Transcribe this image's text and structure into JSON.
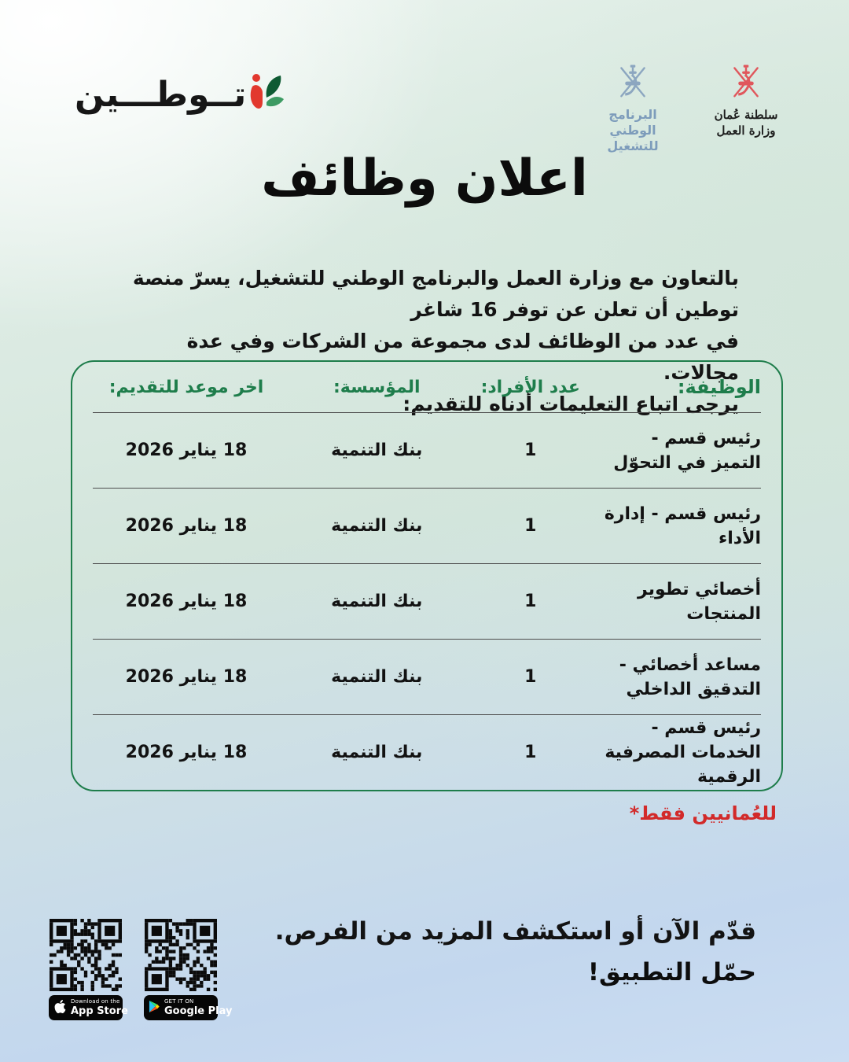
{
  "brand": {
    "wordmark": "تــوطـــين"
  },
  "partners": {
    "nep": {
      "name_line1": "البرنامج الوطني",
      "name_line2": "للتشغيل"
    },
    "mol": {
      "name_line1": "سلطنة عُمان",
      "name_line2": "وزارة العمل"
    }
  },
  "title": "اعلان وظائف",
  "intro": {
    "line1": "بالتعاون مع وزارة العمل والبرنامج الوطني للتشغيل، يسرّ منصة توطين أن تعلن عن توفر 16 شاغر",
    "line2": "في عدد من الوظائف لدى مجموعة من الشركات وفي عدة مجالات.",
    "line3": "يرجى اتباع التعليمات أدناه للتقديم:"
  },
  "table": {
    "headers": {
      "job": "الوظيفة:",
      "count": "عدد الأفراد:",
      "org": "المؤسسة:",
      "deadline": "اخر موعد للتقديم:"
    },
    "rows": [
      {
        "job": "رئيس قسم -\nالتميز في التحوّل",
        "count": "1",
        "org": "بنك التنمية",
        "deadline": "18 يناير 2026"
      },
      {
        "job": "رئيس قسم - إدارة الأداء",
        "count": "1",
        "org": "بنك التنمية",
        "deadline": "18 يناير 2026"
      },
      {
        "job": "أخصائي تطوير المنتجات",
        "count": "1",
        "org": "بنك التنمية",
        "deadline": "18 يناير 2026"
      },
      {
        "job": "مساعد أخصائي -\nالتدقيق الداخلي",
        "count": "1",
        "org": "بنك التنمية",
        "deadline": "18 يناير 2026"
      },
      {
        "job": "رئيس قسم -\nالخدمات المصرفية الرقمية",
        "count": "1",
        "org": "بنك التنمية",
        "deadline": "18 يناير 2026"
      }
    ]
  },
  "note": "للعُمانيين فقط*",
  "cta": {
    "line1": "قدّم الآن أو استكشف المزيد من الفرص.",
    "line2": "حمّل التطبيق!"
  },
  "stores": {
    "appstore": {
      "top": "Download on the",
      "bottom": "App Store"
    },
    "googleplay": {
      "top": "GET IT ON",
      "bottom": "Google Play"
    }
  },
  "icons": [
    "tawteen-mark-icon",
    "oman-emblem-icon",
    "apple-icon",
    "google-play-icon",
    "qr-code"
  ],
  "colors": {
    "green": "#1e7d4b",
    "red": "#d22a2a",
    "nep_blue": "#7d9cbb",
    "mol_red": "#e0575c",
    "text": "#121212",
    "badge_bg": "#060606"
  }
}
